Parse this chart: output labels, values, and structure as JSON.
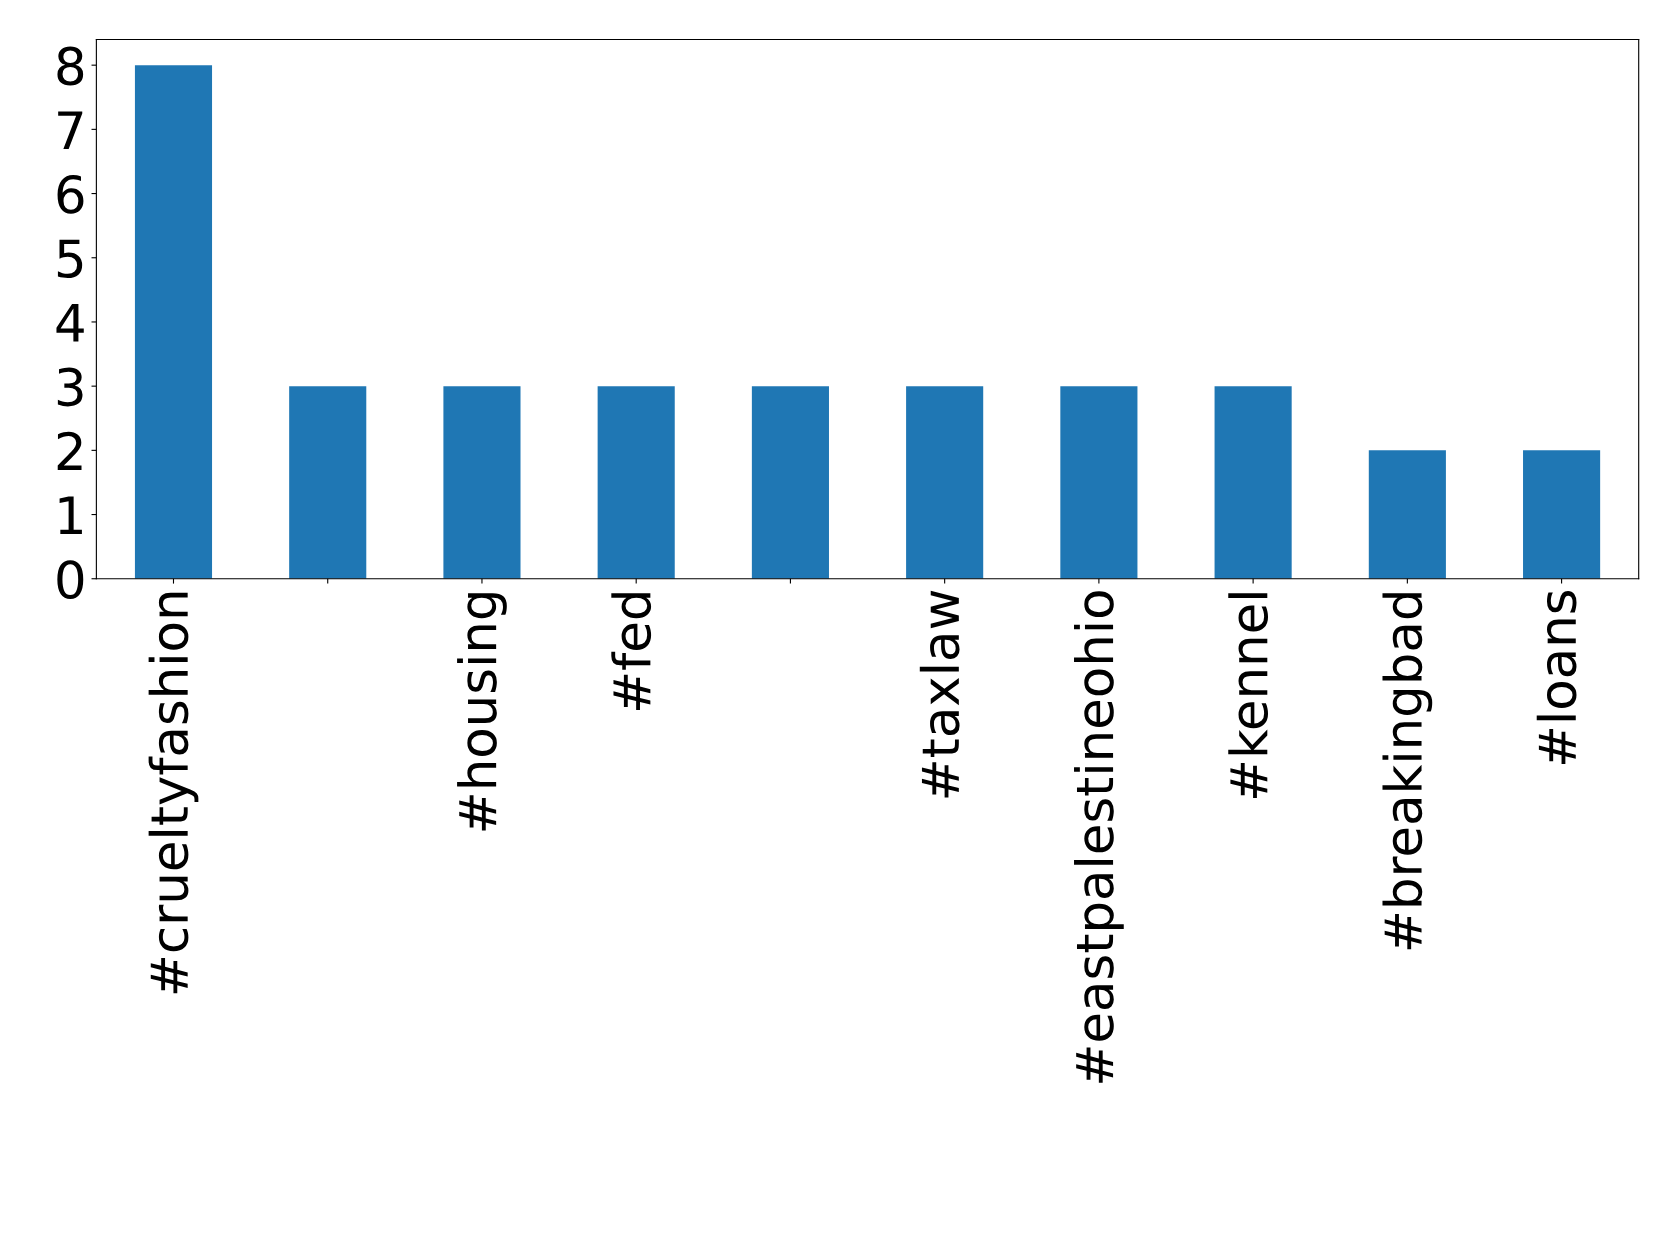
{
  "chart_data": {
    "type": "bar",
    "categories": [
      "#crueltyfashion",
      null,
      "#housing",
      "#fed",
      null,
      "#taxlaw",
      "#eastpalestineohio",
      "#kennel",
      "#breakingbad",
      "#loans"
    ],
    "values": [
      8,
      3,
      3,
      3,
      3,
      3,
      3,
      3,
      2,
      2
    ],
    "color": "#1f77b4",
    "ylim": [
      0,
      8.4
    ],
    "yticks": [
      0,
      1,
      2,
      3,
      4,
      5,
      6,
      7,
      8
    ],
    "grid": false,
    "legend": false
  }
}
